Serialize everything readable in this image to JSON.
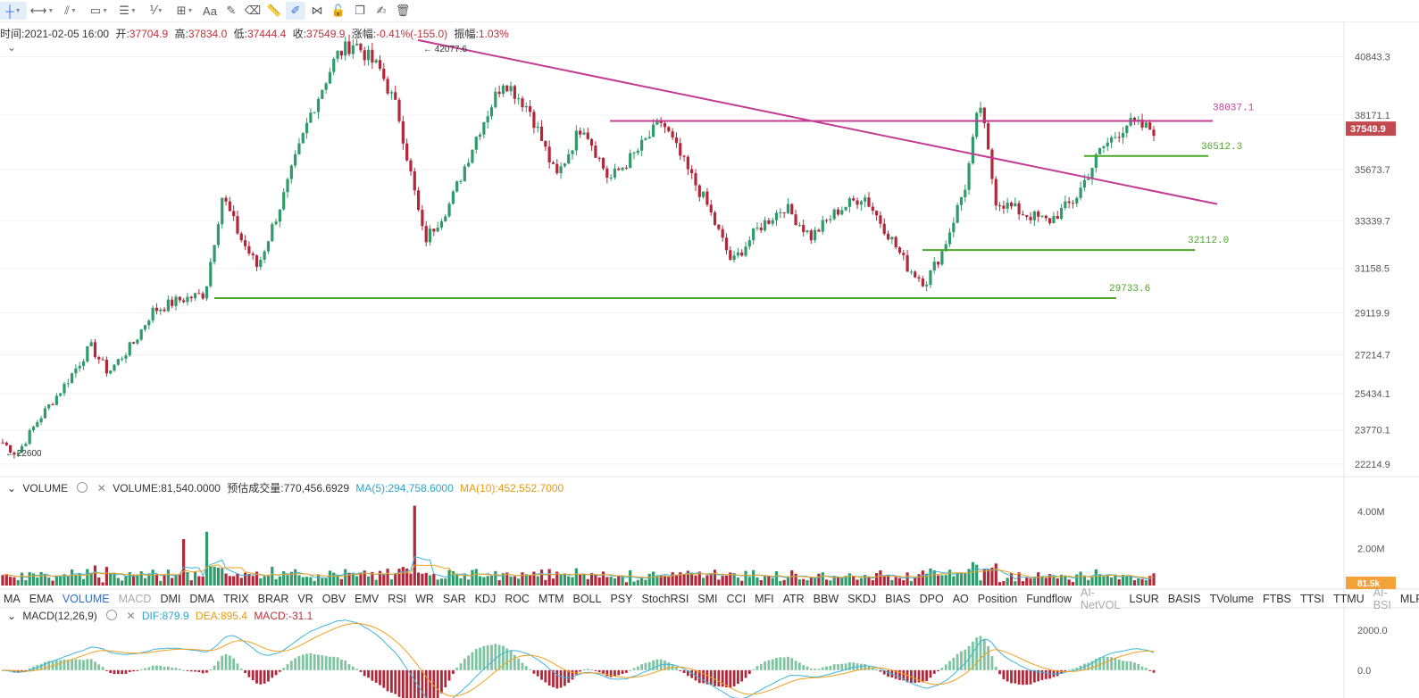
{
  "toolbar": {
    "items": [
      {
        "name": "crosshair-icon",
        "glyph": "┼",
        "dd": true,
        "active": true
      },
      {
        "name": "horizontal-line-icon",
        "glyph": "⟷",
        "dd": true
      },
      {
        "name": "trend-line-icon",
        "glyph": "⫽",
        "dd": true
      },
      {
        "name": "rectangle-icon",
        "glyph": "▭",
        "dd": true
      },
      {
        "name": "parallel-lines-icon",
        "glyph": "☰",
        "dd": true
      },
      {
        "name": "fib-icon",
        "glyph": "⅟",
        "dd": true
      },
      {
        "name": "measure-icon",
        "glyph": "⊞",
        "dd": true
      },
      {
        "name": "text-icon",
        "glyph": "Aa",
        "dd": false
      },
      {
        "name": "brush-icon",
        "glyph": "✎",
        "dd": false
      },
      {
        "name": "eraser-icon",
        "glyph": "⌫",
        "dd": false
      },
      {
        "name": "ruler-icon",
        "glyph": "📏",
        "dd": false
      },
      {
        "name": "magnet-pen-icon",
        "glyph": "✐",
        "dd": false,
        "active": true
      },
      {
        "name": "link-icon",
        "glyph": "⋈",
        "dd": false
      },
      {
        "name": "lock-icon",
        "glyph": "🔓",
        "dd": false
      },
      {
        "name": "copy-icon",
        "glyph": "❐",
        "dd": false
      },
      {
        "name": "edit-icon",
        "glyph": "✍",
        "dd": false
      },
      {
        "name": "trash-icon",
        "glyph": "🗑",
        "dd": false
      }
    ]
  },
  "ohlc": {
    "time_label": "时间:",
    "time": "2021-02-05 16:00",
    "open_label": "开:",
    "open": "37704.9",
    "high_label": "高:",
    "high": "37834.0",
    "low_label": "低:",
    "low": "37444.4",
    "close_label": "收:",
    "close": "37549.9",
    "change_label": "涨幅:",
    "change": "-0.41%(-155.0)",
    "amp_label": "振幅:",
    "amp": "1.03%"
  },
  "colors": {
    "up": "#2f9a6a",
    "down": "#b1283a",
    "trend": "#c33b92",
    "support": "#4ba62a",
    "dif": "#3fb4d8",
    "dea": "#f0a020",
    "ma5": "#3fb4d8",
    "ma10": "#f0a020"
  },
  "volume_header": {
    "name": "VOLUME",
    "value_label": "VOLUME:",
    "value": "81,540.0000",
    "est_label": "预估成交量:",
    "est": "770,456.6929",
    "ma5_label": "MA(5):",
    "ma5": "294,758.6000",
    "ma10_label": "MA(10):",
    "ma10": "452,552.7000"
  },
  "macd_header": {
    "name": "MACD(12,26,9)",
    "dif_label": "DIF:",
    "dif": "879.9",
    "dea_label": "DEA:",
    "dea": "895.4",
    "macd_label": "MACD:",
    "macd": "-31.1"
  },
  "indicators": {
    "items": [
      "MA",
      "EMA",
      "VOLUME",
      "MACD",
      "DMI",
      "DMA",
      "TRIX",
      "BRAR",
      "VR",
      "OBV",
      "EMV",
      "RSI",
      "WR",
      "SAR",
      "KDJ",
      "ROC",
      "MTM",
      "BOLL",
      "PSY",
      "StochRSI",
      "SMI",
      "CCI",
      "MFI",
      "ATR",
      "BBW",
      "SKDJ",
      "BIAS",
      "DPO",
      "AO",
      "Position",
      "Fundflow",
      "AI-NetVOL",
      "LSUR",
      "BASIS",
      "TVolume",
      "FTBS",
      "TTSI",
      "TTMU",
      "AI-BSI",
      "MLR"
    ],
    "active": "VOLUME",
    "dim": [
      "MACD",
      "AI-NetVOL",
      "AI-BSI"
    ]
  },
  "chart_data": [
    {
      "type": "candlestick",
      "ylim": [
        21800,
        41800
      ],
      "y_ticks": [
        "40843.3",
        "38171.1",
        "35673.7",
        "33339.7",
        "31158.5",
        "29119.9",
        "27214.7",
        "25434.1",
        "23770.1",
        "22214.9"
      ],
      "current_price": "37549.9",
      "high_marker": "42077.6",
      "low_marker": "22600",
      "candles_n": 300,
      "anchors": [
        [
          0,
          23200
        ],
        [
          8,
          22650
        ],
        [
          20,
          24200
        ],
        [
          35,
          25800
        ],
        [
          50,
          27600
        ],
        [
          60,
          26400
        ],
        [
          75,
          27800
        ],
        [
          85,
          29200
        ],
        [
          100,
          29700
        ],
        [
          115,
          30000
        ],
        [
          125,
          34500
        ],
        [
          135,
          32600
        ],
        [
          145,
          31200
        ],
        [
          160,
          34500
        ],
        [
          175,
          38200
        ],
        [
          190,
          40900
        ],
        [
          200,
          41500
        ],
        [
          215,
          40200
        ],
        [
          225,
          38300
        ],
        [
          240,
          32400
        ],
        [
          255,
          34200
        ],
        [
          270,
          37300
        ],
        [
          285,
          39800
        ],
        [
          300,
          38400
        ],
        [
          315,
          35300
        ],
        [
          330,
          37800
        ],
        [
          345,
          35200
        ],
        [
          360,
          36400
        ],
        [
          375,
          37900
        ],
        [
          390,
          35600
        ],
        [
          400,
          34200
        ],
        [
          415,
          31400
        ],
        [
          430,
          33000
        ],
        [
          445,
          34000
        ],
        [
          460,
          32600
        ],
        [
          475,
          33800
        ],
        [
          490,
          34500
        ],
        [
          505,
          32600
        ],
        [
          515,
          31200
        ],
        [
          525,
          30500
        ],
        [
          535,
          32000
        ],
        [
          548,
          35000
        ],
        [
          556,
          38800
        ],
        [
          565,
          34300
        ],
        [
          580,
          33700
        ],
        [
          595,
          33300
        ],
        [
          610,
          34300
        ],
        [
          625,
          36600
        ],
        [
          640,
          37800
        ],
        [
          655,
          37500
        ]
      ],
      "trend_lines": [
        {
          "from": [
            468,
            41600
          ],
          "to": [
            1363,
            34100
          ],
          "color": "trend"
        },
        {
          "from": [
            683,
            37900
          ],
          "to": [
            1358,
            37900
          ],
          "color": "trend",
          "label": "38037.1"
        },
        {
          "from": [
            1214,
            36300
          ],
          "to": [
            1353,
            36300
          ],
          "color": "support",
          "label": "36512.3"
        },
        {
          "from": [
            1033,
            32000
          ],
          "to": [
            1338,
            32000
          ],
          "color": "support",
          "label": "32112.0"
        },
        {
          "from": [
            240,
            29800
          ],
          "to": [
            1250,
            29800
          ],
          "color": "support",
          "label": "29733.6"
        }
      ]
    },
    {
      "type": "bar",
      "name": "VOLUME",
      "ylim": [
        0,
        5000000
      ],
      "y_ticks": [
        "4.00M",
        "2.00M"
      ],
      "current": "81.5k",
      "series": [
        {
          "name": "MA(5)"
        },
        {
          "name": "MA(10)"
        }
      ]
    },
    {
      "type": "bar",
      "name": "MACD",
      "ylim": [
        -900,
        2400
      ],
      "y_ticks": [
        "2000.0",
        "0.0"
      ],
      "series": [
        {
          "name": "DIF"
        },
        {
          "name": "DEA"
        },
        {
          "name": "MACD"
        }
      ]
    }
  ]
}
